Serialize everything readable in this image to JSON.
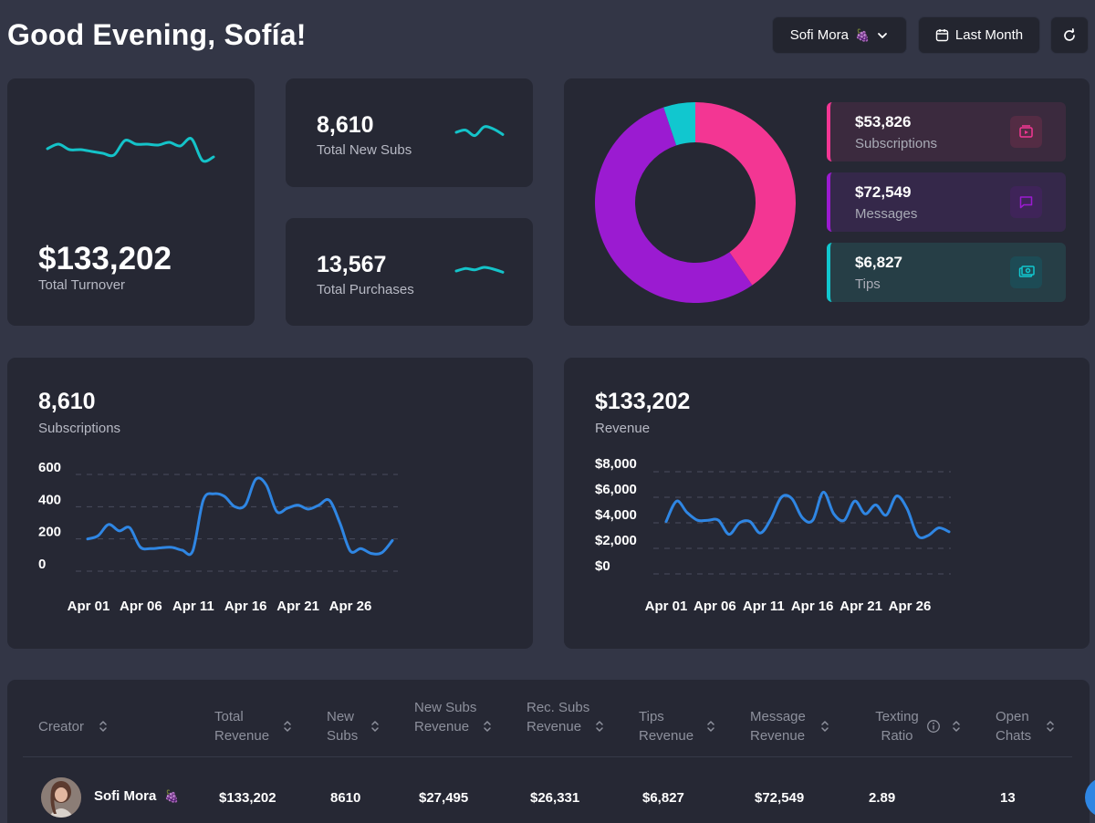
{
  "header": {
    "greeting": "Good Evening, Sofía!",
    "creator_select": {
      "label": "Sofi Mora",
      "emoji": "🍇"
    },
    "period_button": "Last Month"
  },
  "stats": {
    "turnover": {
      "value": "$133,202",
      "label": "Total Turnover"
    },
    "new_subs": {
      "value": "8,610",
      "label": "Total New Subs"
    },
    "purchases": {
      "value": "13,567",
      "label": "Total Purchases"
    }
  },
  "breakdown": {
    "items": [
      {
        "value": "$53,826",
        "label": "Subscriptions",
        "color": "#f33693",
        "icon": "video-icon"
      },
      {
        "value": "$72,549",
        "label": "Messages",
        "color": "#9b1bd1",
        "icon": "message-icon"
      },
      {
        "value": "$6,827",
        "label": "Tips",
        "color": "#11c7cf",
        "icon": "cash-icon"
      }
    ]
  },
  "subs_chart": {
    "value": "8,610",
    "label": "Subscriptions"
  },
  "revenue_chart": {
    "value": "$133,202",
    "label": "Revenue"
  },
  "chart_data": [
    {
      "type": "pie",
      "categories": [
        "Subscriptions",
        "Messages",
        "Tips"
      ],
      "values": [
        53826,
        72549,
        6827
      ],
      "colors": [
        "#f33693",
        "#9b1bd1",
        "#11c7cf"
      ],
      "donut": true
    },
    {
      "type": "line",
      "x_ticks": [
        "Apr 01",
        "Apr 06",
        "Apr 11",
        "Apr 16",
        "Apr 21",
        "Apr 26"
      ],
      "y_ticks": [
        "600",
        "400",
        "200",
        "0"
      ],
      "ylim": [
        0,
        600
      ],
      "grid": true,
      "series": [
        {
          "color": "#2f86e3",
          "values": [
            200,
            220,
            290,
            250,
            270,
            150,
            140,
            145,
            148,
            130,
            125,
            440,
            480,
            465,
            400,
            410,
            570,
            535,
            370,
            390,
            410,
            385,
            410,
            440,
            300,
            125,
            140,
            110,
            115,
            190
          ]
        }
      ]
    },
    {
      "type": "line",
      "x_ticks": [
        "Apr 01",
        "Apr 06",
        "Apr 11",
        "Apr 16",
        "Apr 21",
        "Apr 26"
      ],
      "y_ticks": [
        "$8,000",
        "$6,000",
        "$4,000",
        "$2,000",
        "$0"
      ],
      "ylim": [
        0,
        8000
      ],
      "grid": true,
      "series": [
        {
          "color": "#2f86e3",
          "values": [
            4100,
            5700,
            4800,
            4200,
            4200,
            4200,
            3100,
            4000,
            4100,
            3200,
            4300,
            6000,
            5900,
            4400,
            4200,
            6400,
            4700,
            4200,
            5700,
            4700,
            5400,
            4600,
            6100,
            5100,
            3000,
            3000,
            3600,
            3300
          ]
        }
      ]
    }
  ],
  "sparklines": {
    "turnover": [
      3,
      8,
      2,
      2,
      0,
      -2,
      -4,
      12,
      8,
      8,
      7,
      10,
      6,
      14,
      -10,
      -6
    ],
    "new_subs": [
      0,
      4,
      -6,
      10,
      6,
      -4
    ],
    "purchases": [
      0,
      4,
      2,
      6,
      3,
      -2
    ]
  },
  "table": {
    "columns": [
      {
        "label": "Creator"
      },
      {
        "label": "Total Revenue"
      },
      {
        "label": "New Subs"
      },
      {
        "label": "New Subs Revenue"
      },
      {
        "label": "Rec. Subs Revenue"
      },
      {
        "label": "Tips Revenue"
      },
      {
        "label": "Message Revenue"
      },
      {
        "label": "Texting Ratio"
      },
      {
        "label": "Open Chats"
      }
    ],
    "rows": [
      {
        "creator": "Sofi Mora",
        "emoji": "🍇",
        "total_revenue": "$133,202",
        "new_subs": "8610",
        "new_subs_revenue": "$27,495",
        "rec_subs_revenue": "$26,331",
        "tips_revenue": "$6,827",
        "message_revenue": "$72,549",
        "texting_ratio": "2.89",
        "open_chats": "13"
      }
    ]
  }
}
